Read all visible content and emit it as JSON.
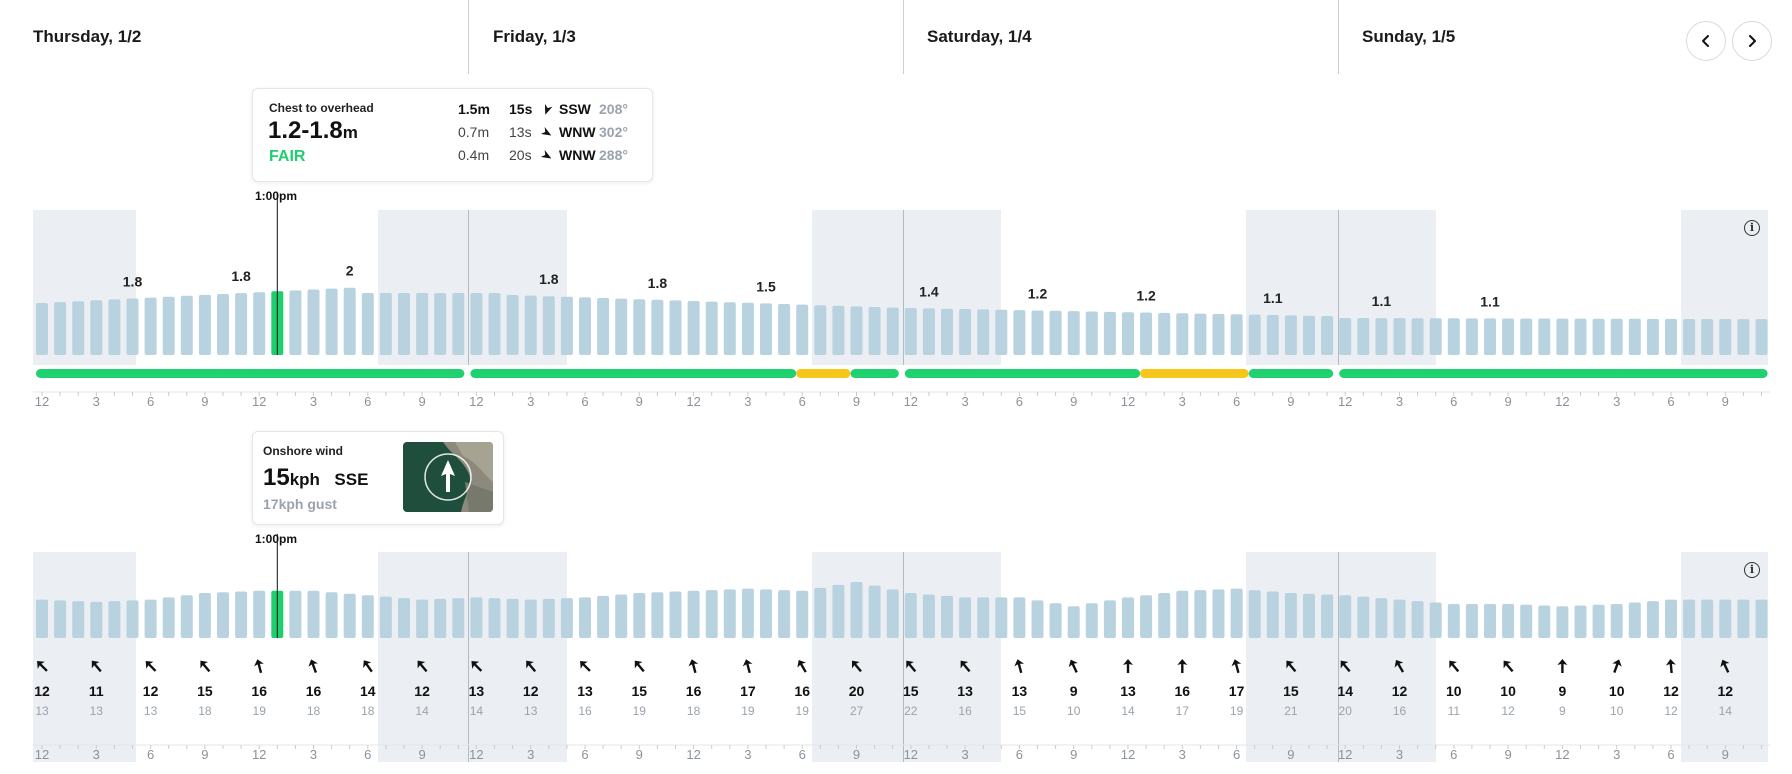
{
  "days": [
    {
      "label": "Thursday, 1/2"
    },
    {
      "label": "Friday, 1/3"
    },
    {
      "label": "Saturday, 1/4"
    },
    {
      "label": "Sunday, 1/5"
    }
  ],
  "nav": {
    "prev_icon": "chevron-left-icon",
    "next_icon": "chevron-right-icon"
  },
  "colors": {
    "bar": "#b8d3df",
    "selected": "#1fcf6f",
    "night": "#ebeef2",
    "good": "#1fd26f",
    "fair": "#f5c71a"
  },
  "surf": {
    "tooltip": {
      "description": "Chest to overhead",
      "range": "1.2-1.8",
      "unit": "m",
      "rating": "FAIR",
      "swells": [
        {
          "height": "1.5m",
          "period": "15s",
          "dir": "SSW",
          "deg": "208°",
          "primary": true
        },
        {
          "height": "0.7m",
          "period": "13s",
          "dir": "WNW",
          "deg": "302°",
          "primary": false
        },
        {
          "height": "0.4m",
          "period": "20s",
          "dir": "WNW",
          "deg": "288°",
          "primary": false
        }
      ]
    },
    "selected_time": "1:00pm",
    "selected_index": 13,
    "peak_labels": [
      "1.8",
      "1.8",
      "2",
      "1.8",
      "1.8",
      "1.5",
      "1.4",
      "1.2",
      "1.2",
      "1.1",
      "1.1",
      "1.1"
    ],
    "conditions": [
      {
        "rating": "good",
        "from": 0,
        "to": 24
      },
      {
        "rating": "good",
        "from": 24,
        "to": 42
      },
      {
        "rating": "fair",
        "from": 42,
        "to": 45
      },
      {
        "rating": "good",
        "from": 45,
        "to": 48
      },
      {
        "rating": "good",
        "from": 48,
        "to": 61
      },
      {
        "rating": "fair",
        "from": 61,
        "to": 67
      },
      {
        "rating": "good",
        "from": 67,
        "to": 72
      },
      {
        "rating": "good",
        "from": 72,
        "to": 96
      }
    ]
  },
  "wind": {
    "tooltip": {
      "label": "Onshore wind",
      "speed": "15",
      "unit": "kph",
      "direction": "SSE",
      "gust": "17kph gust"
    },
    "selected_time": "1:00pm",
    "selected_index": 13,
    "speeds": [
      "12",
      "11",
      "12",
      "15",
      "16",
      "16",
      "14",
      "12",
      "13",
      "12",
      "13",
      "15",
      "16",
      "17",
      "16",
      "20",
      "15",
      "13",
      "13",
      "9",
      "13",
      "16",
      "17",
      "15",
      "14",
      "12",
      "10",
      "10",
      "9",
      "10",
      "12",
      "12"
    ],
    "gusts": [
      "13",
      "13",
      "13",
      "18",
      "19",
      "18",
      "18",
      "14",
      "14",
      "13",
      "16",
      "19",
      "18",
      "19",
      "19",
      "27",
      "22",
      "16",
      "15",
      "10",
      "14",
      "17",
      "19",
      "21",
      "20",
      "16",
      "11",
      "12",
      "9",
      "10",
      "12",
      "14"
    ],
    "arrow_angles": [
      -45,
      -40,
      -45,
      -40,
      -15,
      -20,
      -35,
      -40,
      -45,
      -40,
      -45,
      -40,
      -15,
      -15,
      -30,
      -40,
      -40,
      -40,
      -15,
      -25,
      0,
      0,
      -15,
      -40,
      -40,
      -30,
      -40,
      -40,
      0,
      20,
      -5,
      -25
    ]
  },
  "axis_labels": [
    "12",
    "3",
    "6",
    "9",
    "12",
    "3",
    "6",
    "9",
    "12",
    "3",
    "6",
    "9",
    "12",
    "3",
    "6",
    "9",
    "12",
    "3",
    "6",
    "9",
    "12",
    "3",
    "6",
    "9",
    "12",
    "3",
    "6",
    "9",
    "12",
    "3",
    "6",
    "9"
  ]
}
